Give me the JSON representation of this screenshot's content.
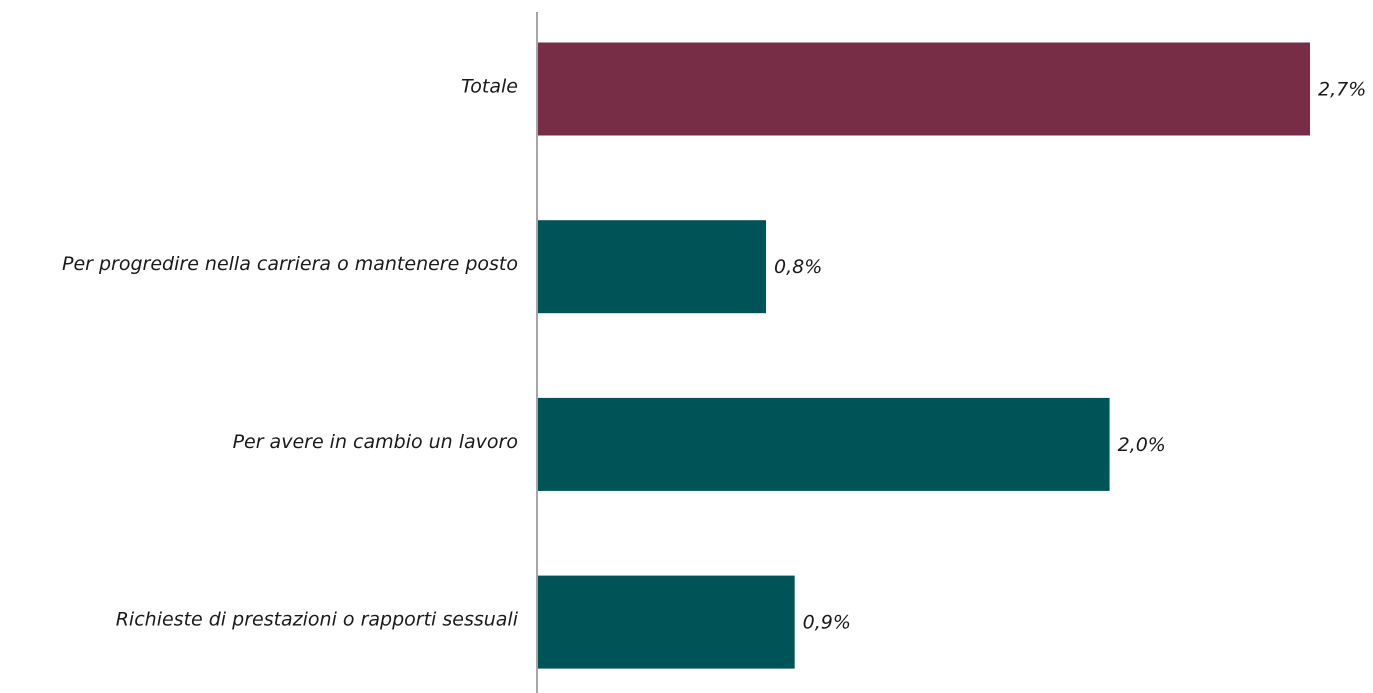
{
  "chart_data": {
    "type": "bar",
    "orientation": "horizontal",
    "categories": [
      "Totale",
      "Per progredire nella carriera o mantenere posto",
      "Per avere in cambio un lavoro",
      "Richieste di prestazioni o rapporti sessuali"
    ],
    "values": [
      2.7,
      0.8,
      2.0,
      0.9
    ],
    "value_labels": [
      "2,7%",
      "0,8%",
      "2,0%",
      "0,9%"
    ],
    "colors": [
      "#772d45",
      "#005356",
      "#005356",
      "#005356"
    ]
  }
}
